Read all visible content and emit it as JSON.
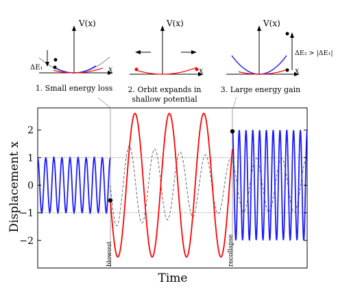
{
  "insets": [
    {
      "ylabel": "V(x)",
      "xlabel": "x",
      "caption_lines": [
        "1. Small energy loss"
      ],
      "delta_label": "ΔE₁"
    },
    {
      "ylabel": "V(x)",
      "xlabel": "x",
      "caption_lines": [
        "2. Orbit expands in",
        "shallow potential"
      ]
    },
    {
      "ylabel": "V(x)",
      "xlabel": "x",
      "caption_lines": [
        "3. Large energy gain"
      ],
      "delta_label": "ΔE₂ > |ΔE₁|"
    }
  ],
  "chart_data": {
    "type": "line",
    "xlabel": "Time",
    "ylabel": "Displacement x",
    "ylim": [
      -3,
      2.8
    ],
    "yticks": [
      -2,
      -1,
      0,
      1,
      2
    ],
    "reference_lines": [
      1,
      -1
    ],
    "annotations": [
      "blowout",
      "recollapse"
    ],
    "series": [
      {
        "color": "#1a1aff",
        "segment": "before blowout",
        "amplitude": 1,
        "cycles": 9
      },
      {
        "color": "#ff0000",
        "segment": "between blowout and recollapse",
        "amplitude": 2.6,
        "cycles": 4
      },
      {
        "color": "#1a1aff",
        "segment": "after recollapse",
        "amplitude": 2,
        "cycles": 11
      },
      {
        "color": "#555555",
        "style": "dashed",
        "segment": "reference",
        "amplitude": 1.5
      }
    ],
    "markers": [
      {
        "x": "blowout",
        "y": -0.55
      },
      {
        "x": "recollapse",
        "y": 1.95
      }
    ]
  },
  "colors": {
    "blue": "#1a1aff",
    "red": "#ff0000",
    "gray": "#999999",
    "dash": "#555555"
  }
}
